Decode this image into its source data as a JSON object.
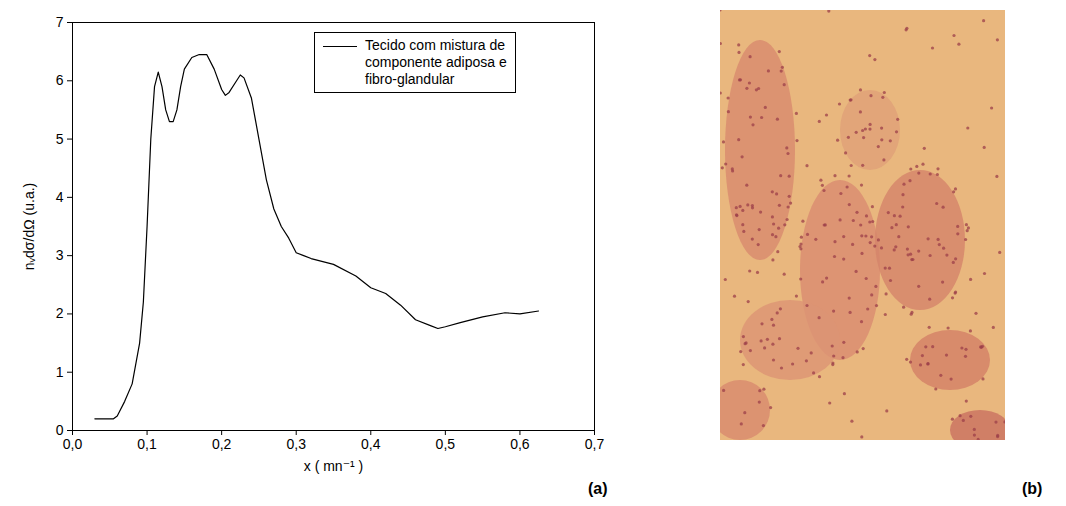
{
  "chart_data": {
    "type": "line",
    "x_label": "x ( mn⁻¹ )",
    "y_label": "nᵥdσ/dΩ (u.a.)",
    "xlim": [
      0,
      0.7
    ],
    "ylim": [
      0,
      7
    ],
    "xticks": [
      {
        "value": 0,
        "label": "0,0"
      },
      {
        "value": 0.1,
        "label": "0,1"
      },
      {
        "value": 0.2,
        "label": "0,2"
      },
      {
        "value": 0.3,
        "label": "0,3"
      },
      {
        "value": 0.4,
        "label": "0,4"
      },
      {
        "value": 0.5,
        "label": "0,5"
      },
      {
        "value": 0.6,
        "label": "0,6"
      },
      {
        "value": 0.7,
        "label": "0,7"
      }
    ],
    "yticks": [
      0,
      1,
      2,
      3,
      4,
      5,
      6,
      7
    ],
    "legend": "top-right",
    "grid": false,
    "x": [
      0.03,
      0.055,
      0.06,
      0.07,
      0.08,
      0.09,
      0.095,
      0.1,
      0.105,
      0.11,
      0.115,
      0.12,
      0.125,
      0.13,
      0.135,
      0.14,
      0.145,
      0.15,
      0.16,
      0.17,
      0.18,
      0.19,
      0.2,
      0.205,
      0.21,
      0.22,
      0.225,
      0.23,
      0.24,
      0.25,
      0.26,
      0.27,
      0.28,
      0.29,
      0.3,
      0.31,
      0.32,
      0.35,
      0.38,
      0.4,
      0.42,
      0.44,
      0.46,
      0.48,
      0.49,
      0.5,
      0.52,
      0.55,
      0.58,
      0.6,
      0.625
    ],
    "series": [
      {
        "name": "Tecido com mistura de componente adiposa e fibro-glandular",
        "color": "#000000",
        "values": [
          0.2,
          0.2,
          0.25,
          0.5,
          0.8,
          1.5,
          2.2,
          3.5,
          5.0,
          5.9,
          6.15,
          5.9,
          5.5,
          5.3,
          5.3,
          5.5,
          5.9,
          6.2,
          6.4,
          6.45,
          6.45,
          6.2,
          5.85,
          5.75,
          5.8,
          6.0,
          6.1,
          6.05,
          5.7,
          5.0,
          4.3,
          3.8,
          3.5,
          3.3,
          3.05,
          3.0,
          2.95,
          2.85,
          2.65,
          2.45,
          2.35,
          2.15,
          1.9,
          1.8,
          1.75,
          1.78,
          1.85,
          1.95,
          2.02,
          2.0,
          2.05
        ]
      }
    ]
  },
  "panel_labels": [
    "(a)",
    "(b)"
  ]
}
